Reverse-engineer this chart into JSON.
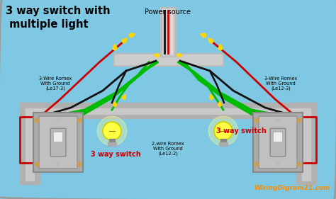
{
  "bg_color": "#7EC8E3",
  "border_color": "#999999",
  "title_text": "3 way switch with\n multiple light",
  "title_color": "#000000",
  "title_fontsize": 10.5,
  "power_source_text": "Power source",
  "label_left_top": "3-Wire Romex\nWith Ground\n(Le17-3)",
  "label_center": "2-wire Romex\nWith Ground\n(Le12-2)",
  "label_right_top": "3-Wire Romex\nWith Ground\n(Le12-3)",
  "label_switch_left": "3 way switch",
  "label_switch_right": "3 way switch",
  "watermark": "WiringDigram21.com",
  "watermark_color": "#FF8C00",
  "wire_green": "#00BB00",
  "wire_red": "#CC0000",
  "wire_black": "#111111",
  "wire_white": "#DDDDDD",
  "connector_yellow": "#FFD700",
  "box_bg": "#C8C8C8",
  "ceiling_color": "#B0B0B0",
  "switch_plate_color": "#C0C0C0",
  "junction_box_color": "#AAAAAA"
}
